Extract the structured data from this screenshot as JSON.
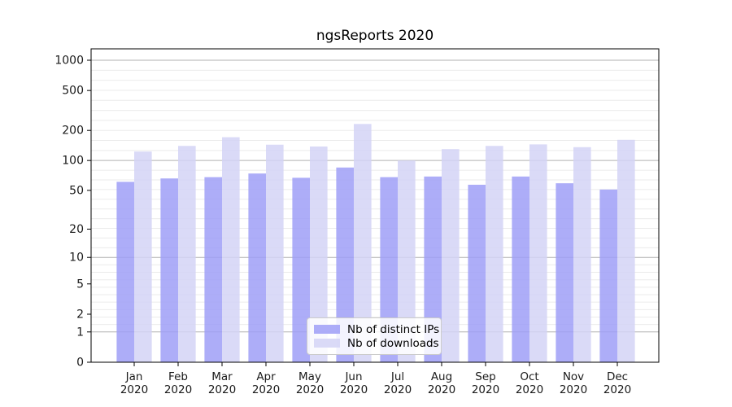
{
  "figure": {
    "background": "#ffffff"
  },
  "chart_data": {
    "type": "bar",
    "title": "ngsReports 2020",
    "categories": [
      "Jan 2020",
      "Feb 2020",
      "Mar 2020",
      "Apr 2020",
      "May 2020",
      "Jun 2020",
      "Jul 2020",
      "Aug 2020",
      "Sep 2020",
      "Oct 2020",
      "Nov 2020",
      "Dec 2020"
    ],
    "month_labels": [
      "Jan",
      "Feb",
      "Mar",
      "Apr",
      "May",
      "Jun",
      "Jul",
      "Aug",
      "Sep",
      "Oct",
      "Nov",
      "Dec"
    ],
    "year_label": "2020",
    "series": [
      {
        "name": "Nb of distinct IPs",
        "color": "#9f9ff7",
        "values": [
          61,
          66,
          68,
          74,
          67,
          85,
          68,
          69,
          57,
          69,
          59,
          51
        ]
      },
      {
        "name": "Nb of downloads",
        "color": "#d3d3f6",
        "values": [
          123,
          140,
          171,
          144,
          138,
          232,
          100,
          130,
          140,
          145,
          136,
          161
        ]
      }
    ],
    "bar_opacity": 0.85,
    "y_axis": {
      "scale": "log1p",
      "tick_values": [
        0,
        1,
        2,
        5,
        10,
        20,
        50,
        100,
        200,
        500,
        1000
      ],
      "tick_labels": [
        "0",
        "1",
        "2",
        "5",
        "10",
        "20",
        "50",
        "100",
        "200",
        "500",
        "1000"
      ],
      "major_gridline_values": [
        1,
        10,
        100,
        1000
      ],
      "range": [
        0,
        1300
      ]
    },
    "grid": {
      "minor_color": "#ebebeb",
      "major_color": "#b0b0b0",
      "on": true
    },
    "axis_color": "#000000",
    "text_color": "#1a1a1a",
    "legend_position": "lower center"
  }
}
